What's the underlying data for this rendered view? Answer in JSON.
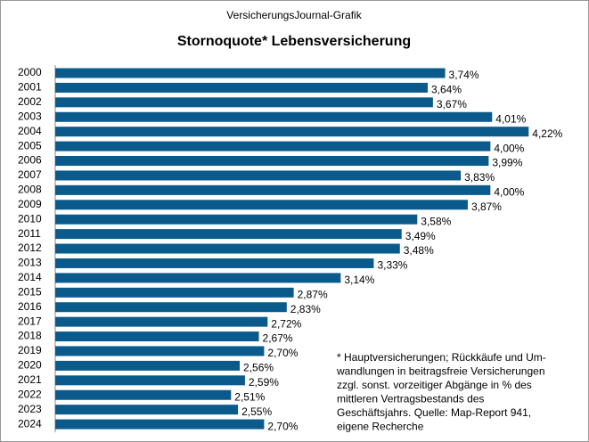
{
  "chart_data": {
    "type": "barh",
    "subtitle": "VersicherungsJournal-Grafik",
    "title": "Stornoquote*  Lebensversicherung",
    "categories": [
      "2000",
      "2001",
      "2002",
      "2003",
      "2004",
      "2005",
      "2006",
      "2007",
      "2008",
      "2009",
      "2010",
      "2011",
      "2012",
      "2013",
      "2014",
      "2015",
      "2016",
      "2017",
      "2018",
      "2019",
      "2020",
      "2021",
      "2022",
      "2023",
      "2024"
    ],
    "values": [
      3.74,
      3.64,
      3.67,
      4.01,
      4.22,
      4.0,
      3.99,
      3.83,
      4.0,
      3.87,
      3.58,
      3.49,
      3.48,
      3.33,
      3.14,
      2.87,
      2.83,
      2.72,
      2.67,
      2.7,
      2.56,
      2.59,
      2.51,
      2.55,
      2.7
    ],
    "value_labels": [
      "3,74%",
      "3,64%",
      "3,67%",
      "4,01%",
      "4,22%",
      "4,00%",
      "3,99%",
      "3,83%",
      "4,00%",
      "3,87%",
      "3,58%",
      "3,49%",
      "3,48%",
      "3,33%",
      "3,14%",
      "2,87%",
      "2,83%",
      "2,72%",
      "2,67%",
      "2,70%",
      "2,56%",
      "2,59%",
      "2,51%",
      "2,55%",
      "2,70%"
    ],
    "color": "#0a5a8c",
    "xlim": [
      1.5,
      4.5
    ],
    "footnote": [
      "* Hauptversicherungen; Rückkäufe und Um-",
      "wandlungen in beitragsfreie Versicherungen",
      "zzgl. sonst. vorzeitiger Abgänge in % des",
      "mittleren Vertragsbestands des",
      "Geschäftsjahrs. Quelle: Map-Report 941,",
      "eigene Recherche"
    ]
  }
}
